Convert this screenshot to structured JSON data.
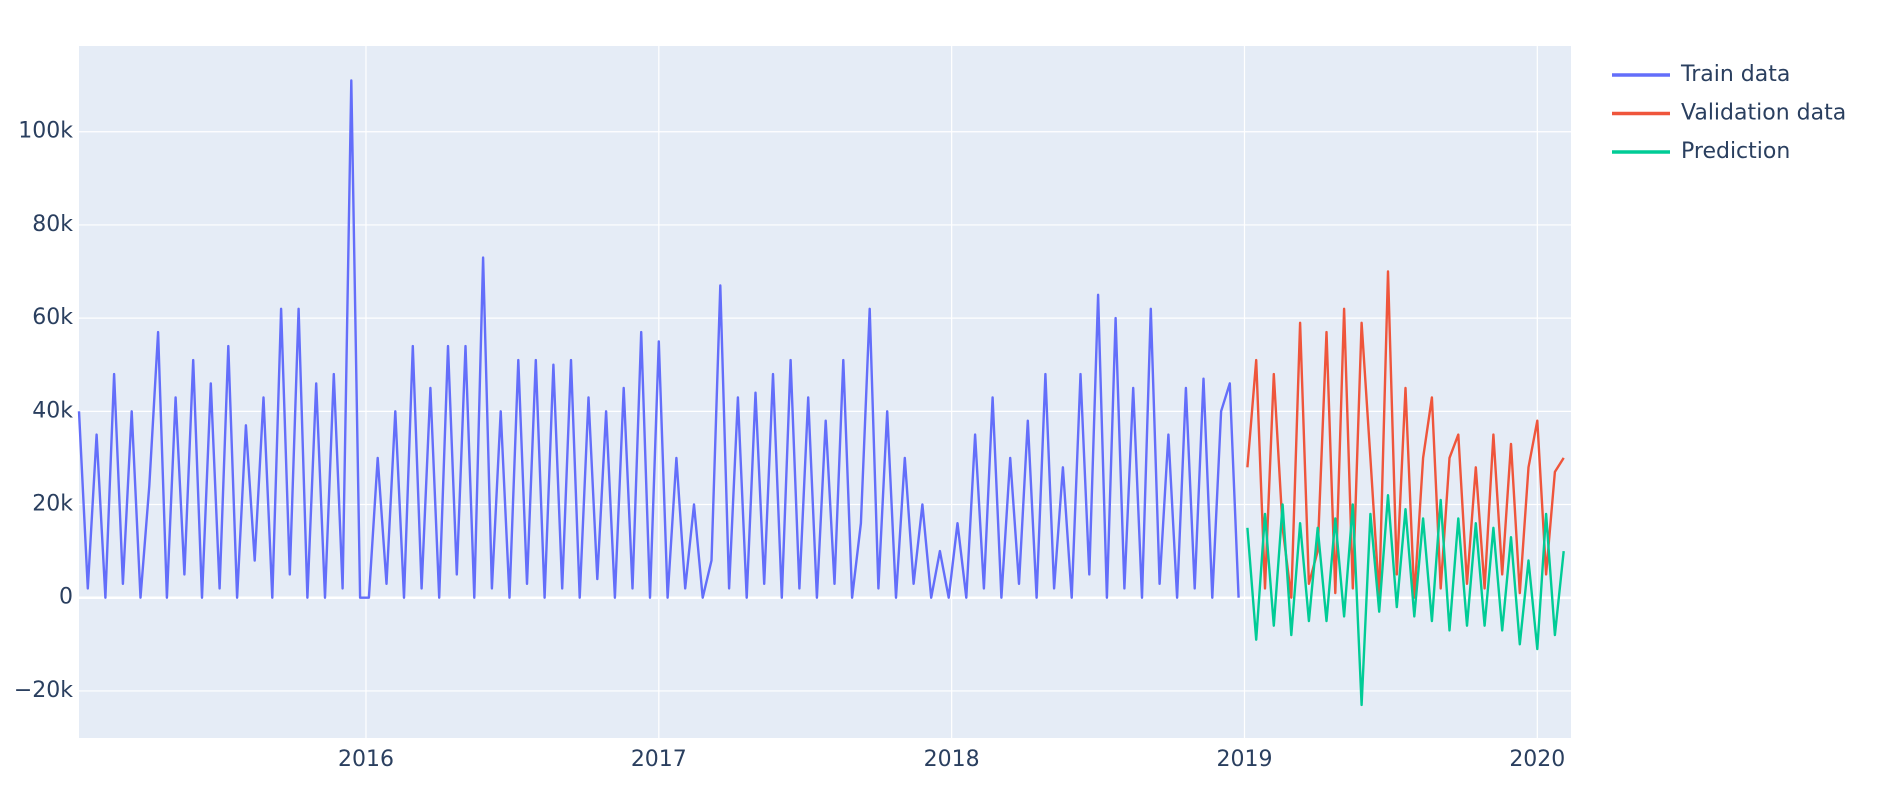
{
  "chart_data": {
    "type": "line",
    "xlim": [
      2015.02,
      2020.115
    ],
    "xticks": [
      2016,
      2017,
      2018,
      2019,
      2020
    ],
    "ylim": [
      -30100,
      118400
    ],
    "yticks": [
      {
        "value": -20000,
        "label": "−20k"
      },
      0,
      {
        "value": 20000,
        "label": "20k"
      },
      {
        "value": 40000,
        "label": "40k"
      },
      {
        "value": 60000,
        "label": "60k"
      },
      {
        "value": 80000,
        "label": "80k"
      },
      {
        "value": 100000,
        "label": "100k"
      }
    ],
    "grid": true,
    "legend": "right",
    "series": [
      {
        "name": "Train data",
        "color": "#636efa",
        "x": [
          2015.02,
          2015.05,
          2015.08,
          2015.11,
          2015.14,
          2015.17,
          2015.2,
          2015.23,
          2015.26,
          2015.29,
          2015.32,
          2015.35,
          2015.38,
          2015.41,
          2015.44,
          2015.47,
          2015.5,
          2015.53,
          2015.56,
          2015.59,
          2015.62,
          2015.65,
          2015.68,
          2015.71,
          2015.74,
          2015.77,
          2015.8,
          2015.83,
          2015.86,
          2015.89,
          2015.92,
          2015.95,
          2015.98,
          2016.01,
          2016.04,
          2016.07,
          2016.1,
          2016.13,
          2016.16,
          2016.19,
          2016.22,
          2016.25,
          2016.28,
          2016.31,
          2016.34,
          2016.37,
          2016.4,
          2016.43,
          2016.46,
          2016.49,
          2016.52,
          2016.55,
          2016.58,
          2016.61,
          2016.64,
          2016.67,
          2016.7,
          2016.73,
          2016.76,
          2016.79,
          2016.82,
          2016.85,
          2016.88,
          2016.91,
          2016.94,
          2016.97,
          2017.0,
          2017.03,
          2017.06,
          2017.09,
          2017.12,
          2017.15,
          2017.18,
          2017.21,
          2017.24,
          2017.27,
          2017.3,
          2017.33,
          2017.36,
          2017.39,
          2017.42,
          2017.45,
          2017.48,
          2017.51,
          2017.54,
          2017.57,
          2017.6,
          2017.63,
          2017.66,
          2017.69,
          2017.72,
          2017.75,
          2017.78,
          2017.81,
          2017.84,
          2017.87,
          2017.9,
          2017.93,
          2017.96,
          2017.99,
          2018.02,
          2018.05,
          2018.08,
          2018.11,
          2018.14,
          2018.17,
          2018.2,
          2018.23,
          2018.26,
          2018.29,
          2018.32,
          2018.35,
          2018.38,
          2018.41,
          2018.44,
          2018.47,
          2018.5,
          2018.53,
          2018.56,
          2018.59,
          2018.62,
          2018.65,
          2018.68,
          2018.71,
          2018.74,
          2018.77,
          2018.8,
          2018.83,
          2018.86,
          2018.89,
          2018.92,
          2018.95,
          2018.98
        ],
        "values": [
          40000,
          2000,
          35000,
          0,
          48000,
          3000,
          40000,
          0,
          24000,
          57000,
          0,
          43000,
          5000,
          51000,
          0,
          46000,
          2000,
          54000,
          0,
          37000,
          8000,
          43000,
          0,
          62000,
          5000,
          62000,
          0,
          46000,
          0,
          48000,
          2000,
          111000,
          0,
          0,
          30000,
          3000,
          40000,
          0,
          54000,
          2000,
          45000,
          0,
          54000,
          5000,
          54000,
          0,
          73000,
          2000,
          40000,
          0,
          51000,
          3000,
          51000,
          0,
          50000,
          2000,
          51000,
          0,
          43000,
          4000,
          40000,
          0,
          45000,
          2000,
          57000,
          0,
          55000,
          0,
          30000,
          2000,
          20000,
          0,
          8000,
          67000,
          2000,
          43000,
          0,
          44000,
          3000,
          48000,
          0,
          51000,
          2000,
          43000,
          0,
          38000,
          3000,
          51000,
          0,
          16000,
          62000,
          2000,
          40000,
          0,
          30000,
          3000,
          20000,
          0,
          10000,
          0,
          16000,
          0,
          35000,
          2000,
          43000,
          0,
          30000,
          3000,
          38000,
          0,
          48000,
          2000,
          28000,
          0,
          48000,
          5000,
          65000,
          0,
          60000,
          2000,
          45000,
          0,
          62000,
          3000,
          35000,
          0,
          45000,
          2000,
          47000,
          0,
          40000,
          46000,
          0
        ]
      },
      {
        "name": "Validation data",
        "color": "#ef553b",
        "x": [
          2019.01,
          2019.04,
          2019.07,
          2019.1,
          2019.13,
          2019.16,
          2019.19,
          2019.22,
          2019.25,
          2019.28,
          2019.31,
          2019.34,
          2019.37,
          2019.4,
          2019.43,
          2019.46,
          2019.49,
          2019.52,
          2019.55,
          2019.58,
          2019.61,
          2019.64,
          2019.67,
          2019.7,
          2019.73,
          2019.76,
          2019.79,
          2019.82,
          2019.85,
          2019.88,
          2019.91,
          2019.94,
          2019.97,
          2020.0,
          2020.03,
          2020.06,
          2020.09
        ],
        "values": [
          28000,
          51000,
          2000,
          48000,
          15000,
          0,
          59000,
          3000,
          10000,
          57000,
          1000,
          62000,
          2000,
          59000,
          30000,
          0,
          70000,
          5000,
          45000,
          0,
          30000,
          43000,
          2000,
          30000,
          35000,
          3000,
          28000,
          2000,
          35000,
          5000,
          33000,
          1000,
          28000,
          38000,
          5000,
          27000,
          30000
        ]
      },
      {
        "name": "Prediction",
        "color": "#00cc96",
        "x": [
          2019.01,
          2019.04,
          2019.07,
          2019.1,
          2019.13,
          2019.16,
          2019.19,
          2019.22,
          2019.25,
          2019.28,
          2019.31,
          2019.34,
          2019.37,
          2019.4,
          2019.43,
          2019.46,
          2019.49,
          2019.52,
          2019.55,
          2019.58,
          2019.61,
          2019.64,
          2019.67,
          2019.7,
          2019.73,
          2019.76,
          2019.79,
          2019.82,
          2019.85,
          2019.88,
          2019.91,
          2019.94,
          2019.97,
          2020.0,
          2020.03,
          2020.06,
          2020.09
        ],
        "values": [
          15000,
          -9000,
          18000,
          -6000,
          20000,
          -8000,
          16000,
          -5000,
          15000,
          -5000,
          17000,
          -4000,
          20000,
          -23000,
          18000,
          -3000,
          22000,
          -2000,
          19000,
          -4000,
          17000,
          -5000,
          21000,
          -7000,
          17000,
          -6000,
          16000,
          -6000,
          15000,
          -7000,
          13000,
          -10000,
          8000,
          -11000,
          18000,
          -8000,
          10000
        ]
      }
    ]
  }
}
